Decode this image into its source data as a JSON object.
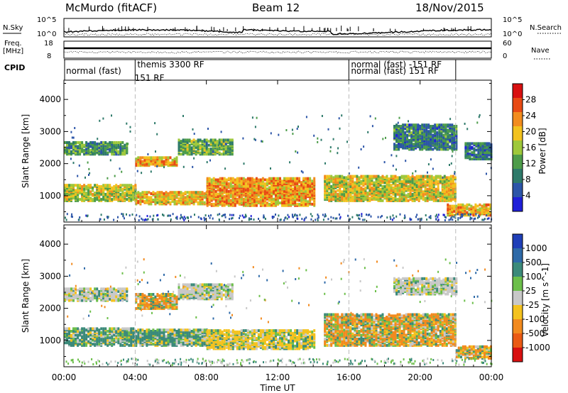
{
  "header": {
    "station": "McMurdo (fitACF)",
    "beam": "Beam 12",
    "date": "18/Nov/2015"
  },
  "sky_panel": {
    "left_label": "N.Sky",
    "right_label": "N.Search",
    "left_ticks": [
      "10^5",
      "10^0"
    ],
    "right_ticks": [
      "10^5",
      "10^0"
    ]
  },
  "freq_panel": {
    "left_label_top": "Freq.",
    "left_label_bottom": "[MHz]",
    "right_label": "Nave",
    "left_ticks": [
      "18",
      "8"
    ],
    "right_ticks": [
      "60",
      "0"
    ]
  },
  "cpid_panel": {
    "label": "CPID",
    "modes": [
      {
        "text": "normal (fast)",
        "start_hour": 0.0,
        "row": 2
      },
      {
        "text": "151 RF",
        "start_hour": 3.85,
        "row": 3
      },
      {
        "text": "themis 3300 RF",
        "start_hour": 4.0,
        "row": 1
      },
      {
        "text": "normal (fast) -151 RF",
        "start_hour": 16.0,
        "row": 1
      },
      {
        "text": "normal (fast) 151 RF",
        "start_hour": 16.0,
        "row": 2
      }
    ],
    "boundaries_hours": [
      4.0,
      16.0,
      22.0
    ]
  },
  "time_axis": {
    "label": "Time UT",
    "tick_labels": [
      "00:00",
      "04:00",
      "08:00",
      "12:00",
      "16:00",
      "20:00",
      "00:00"
    ],
    "range_hours": [
      0,
      24
    ],
    "tick_step_hours": 4
  },
  "chart_data": [
    {
      "type": "heatmap",
      "name": "power",
      "ylabel": "Slant Range [km]",
      "ylim": [
        180,
        4600
      ],
      "y_ticks": [
        1000,
        2000,
        3000,
        4000
      ],
      "colorbar": {
        "label": "Power [dB]",
        "range": [
          0,
          32
        ],
        "tick_labels": [
          "4",
          "8",
          "12",
          "16",
          "20",
          "24",
          "28"
        ],
        "colors": [
          "#1f1fd8",
          "#2c55a8",
          "#2e7a6a",
          "#4d9c4a",
          "#9ec83a",
          "#f2c21e",
          "#f28c1e",
          "#e84a14",
          "#d81010"
        ]
      },
      "bands": [
        {
          "t0": 0.0,
          "t1": 3.6,
          "r0": 2250,
          "r1": 2650,
          "value": 11
        },
        {
          "t0": 4.0,
          "t1": 6.4,
          "r0": 1900,
          "r1": 2150,
          "value": 22
        },
        {
          "t0": 6.4,
          "t1": 9.5,
          "r0": 2250,
          "r1": 2700,
          "value": 13
        },
        {
          "t0": 0.0,
          "t1": 4.0,
          "r0": 800,
          "r1": 1300,
          "value": 17
        },
        {
          "t0": 4.0,
          "t1": 8.0,
          "r0": 700,
          "r1": 1100,
          "value": 20
        },
        {
          "t0": 8.0,
          "t1": 14.0,
          "r0": 650,
          "r1": 1500,
          "value": 22
        },
        {
          "t0": 14.6,
          "t1": 22.0,
          "r0": 800,
          "r1": 1600,
          "value": 18
        },
        {
          "t0": 18.5,
          "t1": 22.0,
          "r0": 2400,
          "r1": 3200,
          "value": 9
        },
        {
          "t0": 21.5,
          "t1": 24.0,
          "r0": 350,
          "r1": 700,
          "value": 21
        },
        {
          "t0": 22.5,
          "t1": 24.0,
          "r0": 2100,
          "r1": 2600,
          "value": 8
        }
      ]
    },
    {
      "type": "heatmap",
      "name": "velocity",
      "ylabel": "Slant Range [km]",
      "ylim": [
        180,
        4600
      ],
      "y_ticks": [
        1000,
        2000,
        3000,
        4000
      ],
      "colorbar": {
        "label": "Velocity [m s^-1]",
        "tick_labels": [
          "1000",
          "500",
          "100",
          "25",
          "-25",
          "-100",
          "-500",
          "-1000"
        ],
        "colors": [
          "#1f3fb8",
          "#2e6aa8",
          "#3b8a7a",
          "#6cbf4a",
          "#c8c8c8",
          "#f4c21e",
          "#f28a1e",
          "#ea5a14",
          "#d81010"
        ]
      },
      "bands": [
        {
          "t0": 0.0,
          "t1": 3.6,
          "r0": 2200,
          "r1": 2600,
          "value": 0
        },
        {
          "t0": 4.0,
          "t1": 6.4,
          "r0": 1950,
          "r1": 2400,
          "value": -500
        },
        {
          "t0": 6.4,
          "t1": 9.5,
          "r0": 2250,
          "r1": 2700,
          "value": 0
        },
        {
          "t0": 0.0,
          "t1": 4.0,
          "r0": 800,
          "r1": 1350,
          "value": 100
        },
        {
          "t0": 4.0,
          "t1": 8.0,
          "r0": 800,
          "r1": 1300,
          "value": 100
        },
        {
          "t0": 8.0,
          "t1": 14.0,
          "r0": 700,
          "r1": 1300,
          "value": -100
        },
        {
          "t0": 14.6,
          "t1": 22.0,
          "r0": 800,
          "r1": 1800,
          "value": -500
        },
        {
          "t0": 18.5,
          "t1": 22.0,
          "r0": 2400,
          "r1": 2900,
          "value": 0
        },
        {
          "t0": 22.0,
          "t1": 24.0,
          "r0": 400,
          "r1": 800,
          "value": -500
        }
      ]
    }
  ]
}
